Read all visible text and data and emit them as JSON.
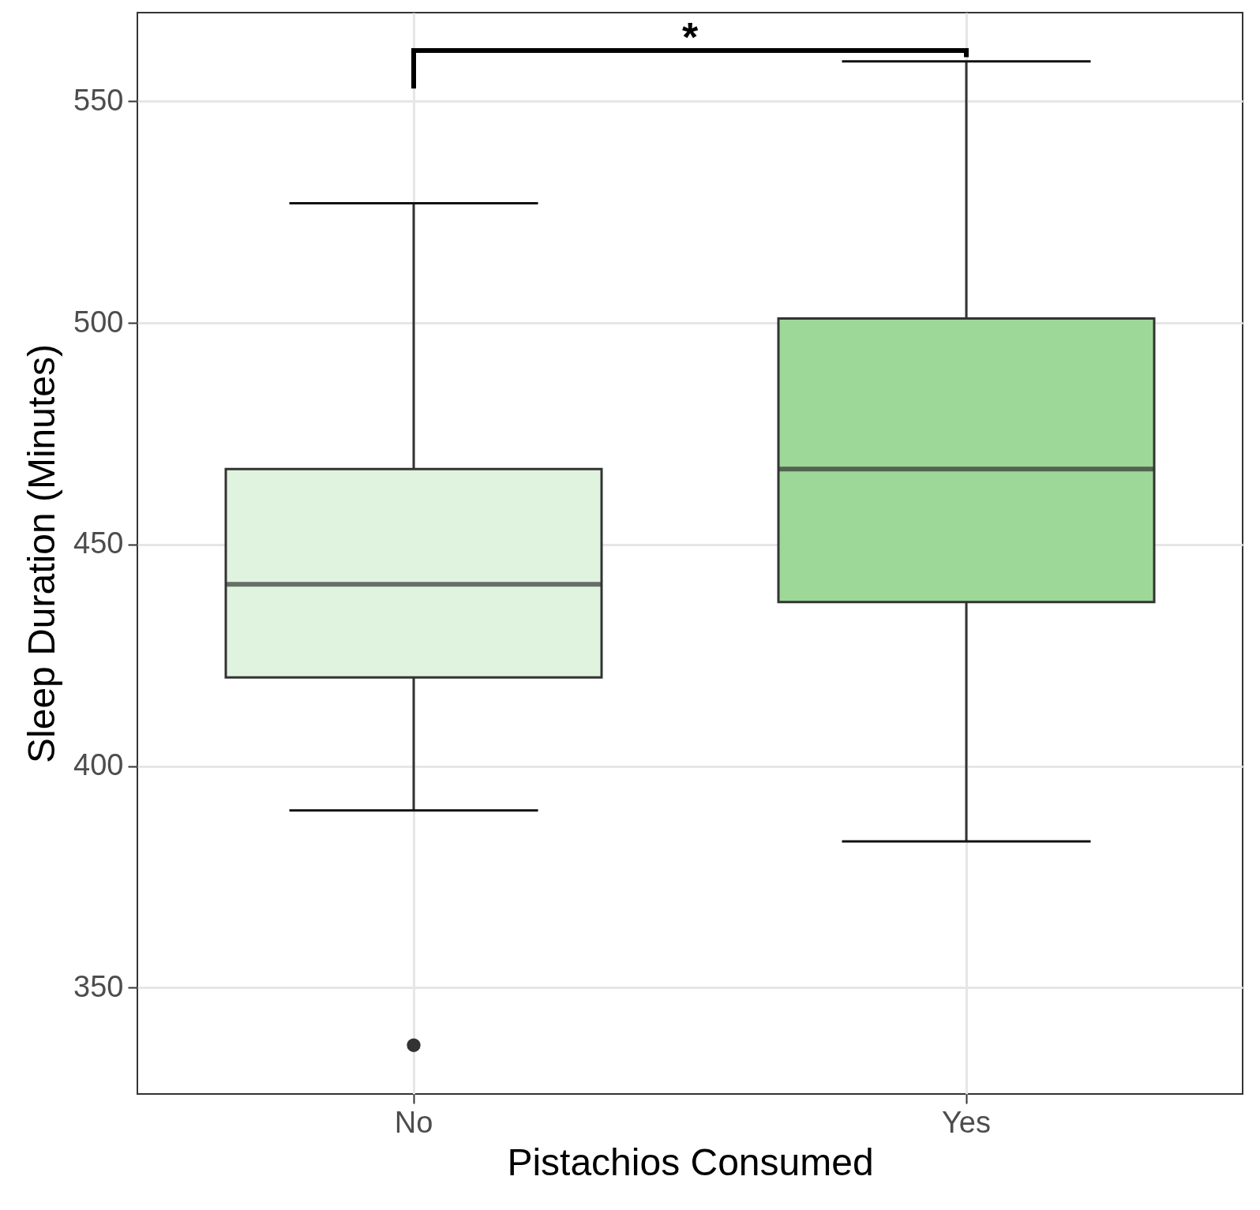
{
  "chart_data": {
    "type": "box",
    "xlabel": "Pistachios Consumed",
    "ylabel": "Sleep Duration (Minutes)",
    "categories": [
      "No",
      "Yes"
    ],
    "colors": [
      "#dff3df",
      "#9dd899"
    ],
    "boxes": [
      {
        "low": 390,
        "q1": 420,
        "median": 441,
        "q3": 467,
        "high": 527,
        "outliers": [
          337
        ]
      },
      {
        "low": 383,
        "q1": 437,
        "median": 467,
        "q3": 501,
        "high": 559
      }
    ],
    "ylim": [
      326,
      570
    ],
    "yticks": [
      350,
      400,
      450,
      500,
      550
    ],
    "grid": true,
    "annotations": [
      "*"
    ]
  }
}
